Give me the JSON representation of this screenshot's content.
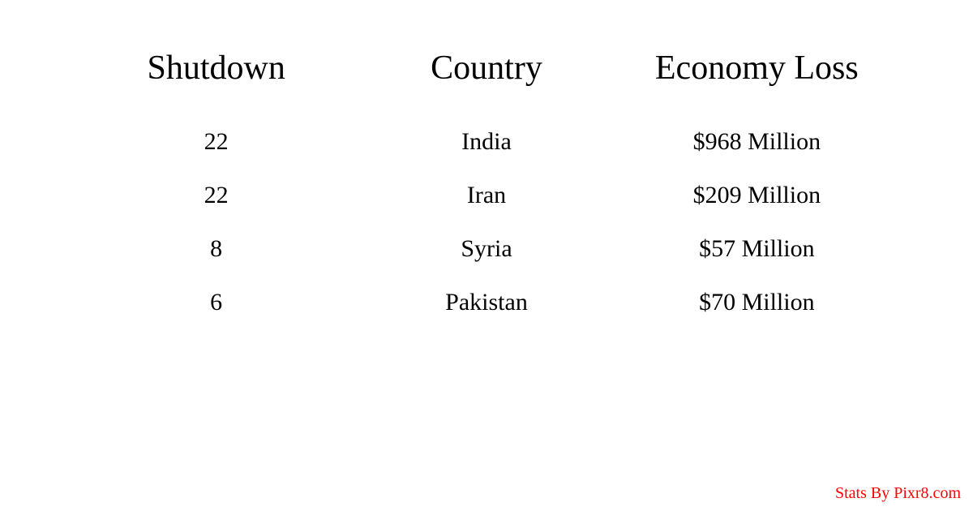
{
  "table": {
    "columns": [
      "Shutdown",
      "Country",
      "Economy Loss"
    ],
    "rows": [
      [
        "22",
        "India",
        "$968 Million"
      ],
      [
        "22",
        "Iran",
        "$209 Million"
      ],
      [
        "8",
        "Syria",
        "$57 Million"
      ],
      [
        "6",
        "Pakistan",
        "$70 Million"
      ]
    ]
  },
  "attribution": "Stats By Pixr8.com",
  "styling": {
    "background_color": "#ffffff",
    "text_color": "#000000",
    "attribution_color": "#ff0000",
    "header_fontsize": 42,
    "cell_fontsize": 30,
    "attribution_fontsize": 20,
    "font_family": "Georgia, serif"
  }
}
